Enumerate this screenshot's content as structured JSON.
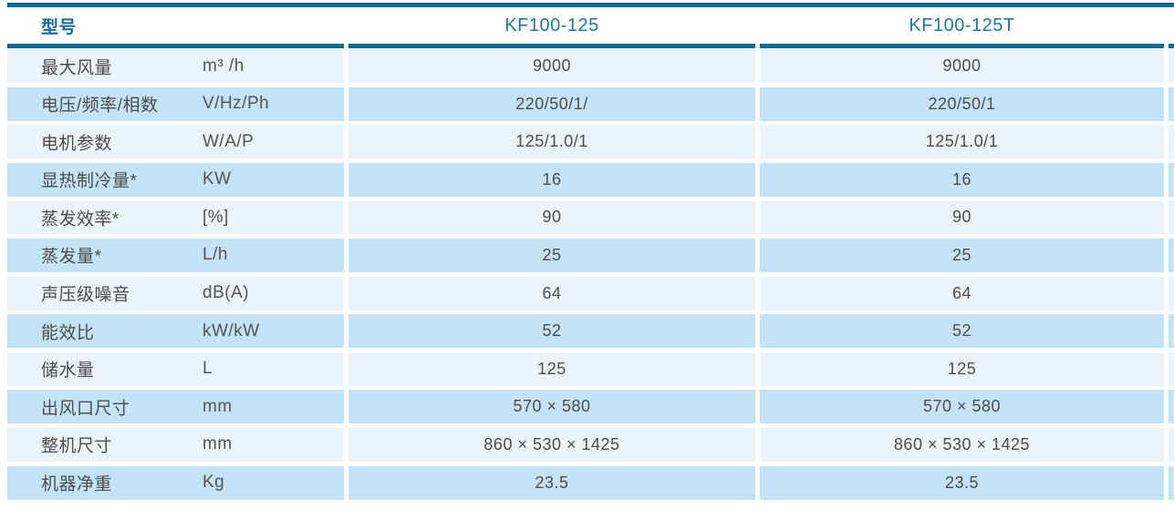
{
  "table": {
    "accent_color": "#0b6b97",
    "header_text_color": "#2076aa",
    "row_light_color": "#e9f4fc",
    "row_dark_color": "#c5e3f6",
    "body_text_color": "#4e4e4e",
    "header": {
      "label": "型号",
      "model1": "KF100-125",
      "model2": "KF100-125T"
    },
    "rows": [
      {
        "label": "最大风量",
        "unit": "m³ /h",
        "v1": "9000",
        "v2": "9000"
      },
      {
        "label": "电压/频率/相数",
        "unit": "V/Hz/Ph",
        "v1": "220/50/1/",
        "v2": "220/50/1"
      },
      {
        "label": "电机参数",
        "unit": "W/A/P",
        "v1": "125/1.0/1",
        "v2": "125/1.0/1"
      },
      {
        "label": "显热制冷量*",
        "unit": "KW",
        "v1": "16",
        "v2": "16"
      },
      {
        "label": "蒸发效率*",
        "unit": "[%]",
        "v1": "90",
        "v2": "90"
      },
      {
        "label": "蒸发量*",
        "unit": "L/h",
        "v1": "25",
        "v2": "25"
      },
      {
        "label": "声压级噪音",
        "unit": "dB(A)",
        "v1": "64",
        "v2": "64"
      },
      {
        "label": "能效比",
        "unit": "kW/kW",
        "v1": "52",
        "v2": "52"
      },
      {
        "label": "储水量",
        "unit": "L",
        "v1": "125",
        "v2": "125"
      },
      {
        "label": "出风口尺寸",
        "unit": "mm",
        "v1": "570 × 580",
        "v2": "570 × 580"
      },
      {
        "label": "整机尺寸",
        "unit": "mm",
        "v1": "860 × 530 × 1425",
        "v2": "860 × 530 × 1425"
      },
      {
        "label": "机器净重",
        "unit": "Kg",
        "v1": "23.5",
        "v2": "23.5"
      }
    ]
  }
}
